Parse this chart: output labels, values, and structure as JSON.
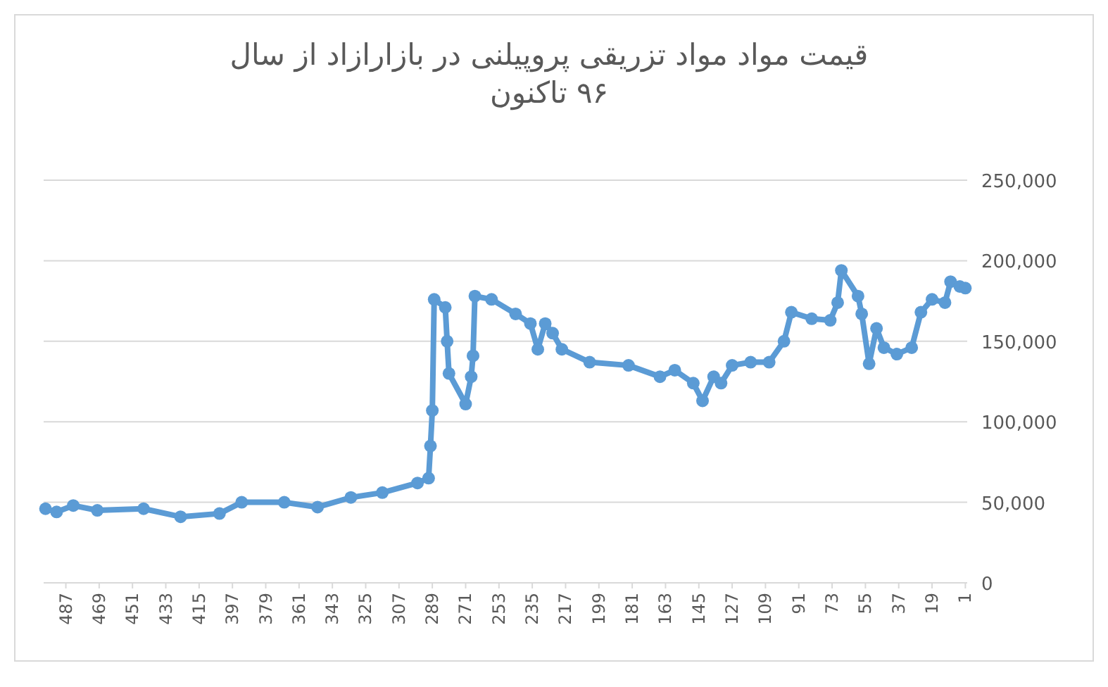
{
  "chart_data": {
    "type": "line",
    "title": "قیمت مواد  مواد تزریقی پروپیلنی در بازارازاد  از سال ۹۶ تاکنون",
    "xlim": [
      499,
      0
    ],
    "xticks": [
      487,
      469,
      451,
      433,
      415,
      397,
      379,
      361,
      343,
      325,
      307,
      289,
      271,
      253,
      235,
      217,
      199,
      181,
      163,
      145,
      127,
      109,
      91,
      73,
      55,
      37,
      19,
      1
    ],
    "ylim": [
      0,
      250000
    ],
    "yticks": [
      {
        "value": 0,
        "label": "0"
      },
      {
        "value": 50000,
        "label": "50,000"
      },
      {
        "value": 100000,
        "label": "100,000"
      },
      {
        "value": 150000,
        "label": "150,000"
      },
      {
        "value": 200000,
        "label": "200,000"
      },
      {
        "value": 250000,
        "label": "250,000"
      }
    ],
    "grid": "y",
    "marker": "circle",
    "line_style": "solid",
    "series": [
      {
        "color": "#5b9bd5",
        "x": [
          498,
          492,
          483,
          470,
          445,
          425,
          404,
          392,
          369,
          351,
          333,
          316,
          297,
          291,
          290,
          289,
          288,
          282,
          281,
          280,
          271,
          268,
          267,
          266,
          257,
          244,
          236,
          232,
          228,
          224,
          219,
          204,
          183,
          166,
          158,
          148,
          143,
          137,
          133,
          127,
          117,
          107,
          99,
          95,
          84,
          74,
          70,
          68,
          59,
          57,
          53,
          49,
          45,
          38,
          30,
          25,
          19,
          12,
          9,
          4,
          1
        ],
        "values": [
          46000,
          44000,
          48000,
          45000,
          46000,
          41000,
          43000,
          50000,
          50000,
          47000,
          53000,
          56000,
          62000,
          65000,
          85000,
          107000,
          176000,
          171000,
          150000,
          130000,
          111000,
          128000,
          141000,
          178000,
          176000,
          167000,
          161000,
          145000,
          161000,
          155000,
          145000,
          137000,
          135000,
          128000,
          132000,
          124000,
          113000,
          128000,
          124000,
          135000,
          137000,
          137000,
          150000,
          168000,
          164000,
          163000,
          174000,
          194000,
          178000,
          167000,
          136000,
          158000,
          146000,
          142000,
          146000,
          168000,
          176000,
          174000,
          187000,
          184000,
          183000
        ]
      }
    ]
  }
}
